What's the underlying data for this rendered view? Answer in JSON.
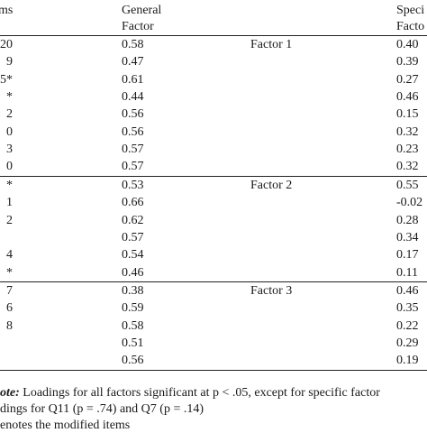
{
  "header": {
    "items": "ms",
    "general_line1": "General",
    "general_line2": "Factor",
    "specific_line1": "Speci",
    "specific_line2": "Facto"
  },
  "groups": [
    {
      "factor": "Factor 1",
      "rows": [
        {
          "item": "20",
          "general": "0.58",
          "specific": "0.40"
        },
        {
          "item": "9",
          "general": "0.47",
          "specific": "0.39"
        },
        {
          "item": "5*",
          "general": "0.61",
          "specific": "0.27"
        },
        {
          "item": "*",
          "general": "0.44",
          "specific": "0.46"
        },
        {
          "item": "2",
          "general": "0.56",
          "specific": "0.15"
        },
        {
          "item": "0",
          "general": "0.56",
          "specific": "0.32"
        },
        {
          "item": "3",
          "general": "0.57",
          "specific": "0.23"
        },
        {
          "item": "0",
          "general": "0.57",
          "specific": "0.32"
        }
      ]
    },
    {
      "factor": "Factor 2",
      "rows": [
        {
          "item": "*",
          "general": "0.53",
          "specific": "0.55"
        },
        {
          "item": "1",
          "general": "0.66",
          "specific": "-0.02"
        },
        {
          "item": "2",
          "general": "0.62",
          "specific": "0.28"
        },
        {
          "item": "",
          "general": "0.57",
          "specific": "0.34"
        },
        {
          "item": "4",
          "general": "0.54",
          "specific": "0.17"
        },
        {
          "item": "*",
          "general": "0.46",
          "specific": "0.11"
        }
      ]
    },
    {
      "factor": "Factor 3",
      "rows": [
        {
          "item": "7",
          "general": "0.38",
          "specific": "0.46"
        },
        {
          "item": "6",
          "general": "0.59",
          "specific": "0.35"
        },
        {
          "item": "8",
          "general": "0.58",
          "specific": "0.22"
        },
        {
          "item": "",
          "general": "0.51",
          "specific": "0.29"
        },
        {
          "item": "",
          "general": "0.56",
          "specific": "0.19"
        }
      ]
    }
  ],
  "notes": {
    "line1_label": "ote:",
    "line1_text": " Loadings for all factors significant at p < .05, except for specific factor",
    "line2": "dings for Q11 (p = .74) and Q7 (p = .14)",
    "line3": "enotes the modified items"
  }
}
